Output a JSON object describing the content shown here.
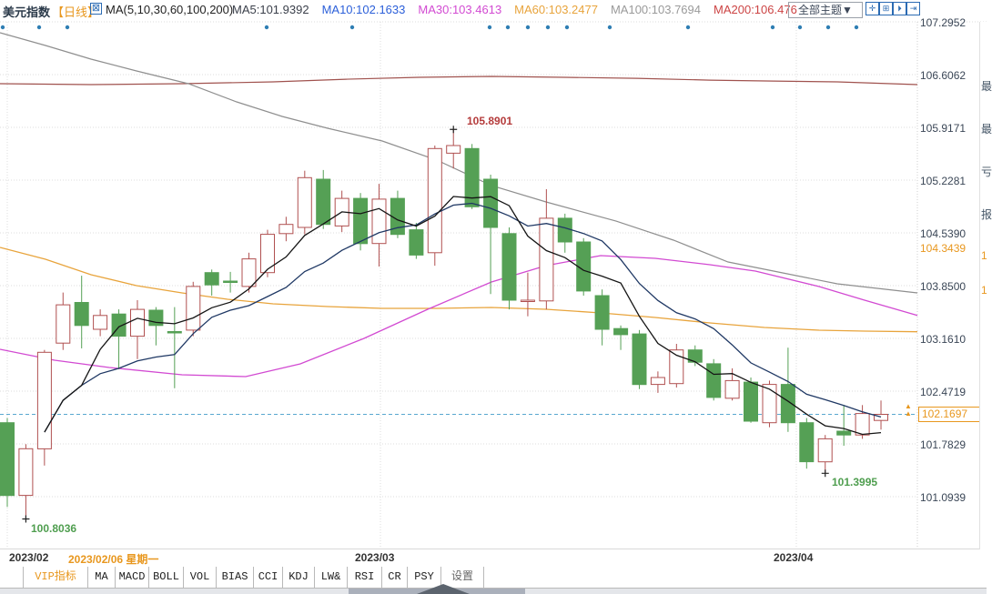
{
  "header": {
    "symbol": "美元指数",
    "period_tag": "【日线】",
    "chart_icon_glyph": "⊠",
    "ma_group_label": "MA(5,10,30,60,100,200)",
    "ma_values": [
      {
        "label": "MA5:101.9392",
        "color": "#3a3f4a"
      },
      {
        "label": "MA10:102.1633",
        "color": "#2b5fd9"
      },
      {
        "label": "MA30:103.4613",
        "color": "#d24ad2"
      },
      {
        "label": "MA60:103.2477",
        "color": "#e8a43c"
      },
      {
        "label": "MA100:103.7694",
        "color": "#9a9a9a"
      },
      {
        "label": "MA200:106.476",
        "color": "#cc4444"
      }
    ],
    "theme_dropdown": "全部主题▼",
    "toolbar_icons": [
      {
        "name": "move-crosshair-icon",
        "glyph": "✛"
      },
      {
        "name": "axis-scale-icon",
        "glyph": "⊞"
      },
      {
        "name": "play-forward-icon",
        "glyph": "⏵"
      },
      {
        "name": "exit-right-icon",
        "glyph": "⇥"
      }
    ]
  },
  "chart_data": {
    "type": "candlestick",
    "title": "美元指数 日线",
    "y_ticks": [
      "107.2952",
      "106.6062",
      "105.9171",
      "105.2281",
      "104.5390",
      "103.8500",
      "103.1610",
      "102.4719",
      "101.7829",
      "101.0939"
    ],
    "ylim": [
      100.4,
      107.3
    ],
    "grid": true,
    "x_axis_months": [
      {
        "label": "2023/02",
        "x": 8,
        "label_x": 10
      },
      {
        "label": "2023/03",
        "x": 418,
        "label_x": 390
      },
      {
        "label": "2023/04",
        "x": 875,
        "label_x": 850
      }
    ],
    "crosshair_date": "2023/02/06 星期一",
    "ohlc": [
      [
        102.06,
        102.12,
        100.96,
        101.11
      ],
      [
        101.11,
        101.78,
        100.8036,
        101.72
      ],
      [
        101.72,
        103.01,
        101.5,
        102.98
      ],
      [
        103.1,
        103.76,
        103.01,
        103.6
      ],
      [
        103.63,
        103.98,
        103.03,
        103.33
      ],
      [
        103.28,
        103.54,
        103.19,
        103.46
      ],
      [
        103.48,
        103.54,
        102.76,
        103.19
      ],
      [
        103.19,
        103.66,
        102.89,
        103.54
      ],
      [
        103.53,
        103.57,
        103.07,
        103.33
      ],
      [
        103.25,
        103.57,
        102.51,
        103.24
      ],
      [
        103.27,
        103.9,
        103.19,
        103.84
      ],
      [
        104.02,
        104.06,
        103.72,
        103.86
      ],
      [
        103.91,
        104.03,
        103.76,
        103.9
      ],
      [
        103.84,
        104.28,
        103.76,
        104.2
      ],
      [
        104.02,
        104.58,
        103.96,
        104.52
      ],
      [
        104.53,
        104.75,
        104.43,
        104.65
      ],
      [
        104.61,
        105.35,
        104.52,
        105.26
      ],
      [
        105.24,
        105.36,
        104.59,
        104.65
      ],
      [
        104.63,
        105.09,
        104.55,
        104.99
      ],
      [
        104.99,
        105.06,
        104.31,
        104.4
      ],
      [
        104.4,
        105.18,
        104.1,
        104.98
      ],
      [
        104.99,
        105.09,
        104.47,
        104.52
      ],
      [
        104.58,
        104.67,
        104.2,
        104.25
      ],
      [
        104.28,
        105.68,
        104.11,
        105.64
      ],
      [
        105.58,
        105.8901,
        105.38,
        105.68
      ],
      [
        105.64,
        105.7,
        104.85,
        104.88
      ],
      [
        105.24,
        105.3,
        103.74,
        104.61
      ],
      [
        104.53,
        104.61,
        103.54,
        103.66
      ],
      [
        103.66,
        104.02,
        103.45,
        103.66
      ],
      [
        103.65,
        105.11,
        103.54,
        104.73
      ],
      [
        104.73,
        104.79,
        104.28,
        104.42
      ],
      [
        104.42,
        104.47,
        103.72,
        103.78
      ],
      [
        103.72,
        103.8,
        103.07,
        103.28
      ],
      [
        103.29,
        103.33,
        103.01,
        103.21
      ],
      [
        103.22,
        103.27,
        102.5,
        102.56
      ],
      [
        102.56,
        102.73,
        102.45,
        102.65
      ],
      [
        102.57,
        103.09,
        102.52,
        103.01
      ],
      [
        103.01,
        103.07,
        102.8,
        102.85
      ],
      [
        102.83,
        102.89,
        102.35,
        102.39
      ],
      [
        102.38,
        102.77,
        102.35,
        102.61
      ],
      [
        102.59,
        102.65,
        102.06,
        102.08
      ],
      [
        102.06,
        102.61,
        102.0,
        102.56
      ],
      [
        102.56,
        103.04,
        101.94,
        102.06
      ],
      [
        102.06,
        102.12,
        101.46,
        101.55
      ],
      [
        101.55,
        101.9,
        101.3995,
        101.85
      ],
      [
        101.95,
        102.29,
        101.76,
        101.9
      ],
      [
        101.9,
        102.29,
        101.85,
        102.18
      ],
      [
        102.09,
        102.35,
        101.97,
        102.1697
      ]
    ],
    "ma_lines": {
      "ma30": [
        [
          0,
          103.019
        ],
        [
          60,
          102.876
        ],
        [
          120,
          102.781
        ],
        [
          200,
          102.686
        ],
        [
          270,
          102.662
        ],
        [
          330,
          102.828
        ],
        [
          400,
          103.161
        ],
        [
          470,
          103.541
        ],
        [
          540,
          103.898
        ],
        [
          600,
          104.111
        ],
        [
          660,
          104.242
        ],
        [
          720,
          104.206
        ],
        [
          780,
          104.123
        ],
        [
          830,
          104.04
        ],
        [
          900,
          103.838
        ],
        [
          950,
          103.66
        ],
        [
          1008,
          103.461
        ]
      ],
      "ma60": [
        [
          0,
          104.349
        ],
        [
          50,
          104.195
        ],
        [
          100,
          103.993
        ],
        [
          150,
          103.85
        ],
        [
          200,
          103.755
        ],
        [
          250,
          103.672
        ],
        [
          300,
          103.613
        ],
        [
          360,
          103.577
        ],
        [
          420,
          103.553
        ],
        [
          480,
          103.553
        ],
        [
          540,
          103.565
        ],
        [
          600,
          103.541
        ],
        [
          660,
          103.494
        ],
        [
          720,
          103.434
        ],
        [
          780,
          103.363
        ],
        [
          840,
          103.304
        ],
        [
          900,
          103.268
        ],
        [
          950,
          103.256
        ],
        [
          1008,
          103.248
        ]
      ],
      "ma100": [
        [
          0,
          107.153
        ],
        [
          50,
          106.986
        ],
        [
          100,
          106.808
        ],
        [
          150,
          106.654
        ],
        [
          207,
          106.487
        ],
        [
          260,
          106.25
        ],
        [
          310,
          106.06
        ],
        [
          360,
          105.905
        ],
        [
          420,
          105.739
        ],
        [
          480,
          105.489
        ],
        [
          540,
          105.157
        ],
        [
          600,
          104.943
        ],
        [
          677,
          104.693
        ],
        [
          740,
          104.444
        ],
        [
          800,
          104.159
        ],
        [
          860,
          104.016
        ],
        [
          920,
          103.874
        ],
        [
          1008,
          103.755
        ]
      ],
      "ma200": [
        [
          0,
          106.487
        ],
        [
          100,
          106.475
        ],
        [
          200,
          106.487
        ],
        [
          300,
          106.511
        ],
        [
          380,
          106.546
        ],
        [
          460,
          106.57
        ],
        [
          540,
          106.582
        ],
        [
          620,
          106.57
        ],
        [
          700,
          106.558
        ],
        [
          780,
          106.534
        ],
        [
          850,
          106.522
        ],
        [
          920,
          106.511
        ],
        [
          1008,
          106.475
        ]
      ]
    },
    "colors": {
      "up": "#b05050",
      "down": "#55a055",
      "ma5": "#151515",
      "ma10": "#1f3864",
      "ma30": "#d24ad2",
      "ma60": "#e8a43c",
      "ma100": "#8f8f8f",
      "ma200": "#a0524e",
      "grid": "#dcdcdc",
      "last_price_line": "#58a8cf",
      "event_dot": "#2e7eb3"
    },
    "event_dots_x": [
      3,
      43,
      74,
      293,
      387,
      538,
      558,
      580,
      602,
      623,
      670,
      756,
      849,
      879,
      910,
      941
    ],
    "annotations": {
      "high": {
        "text": "105.8901",
        "price": 105.8901,
        "candle_index": 24
      },
      "low_left": {
        "text": "100.8036",
        "price": 100.8036,
        "candle_index": 1
      },
      "low_right": {
        "text": "101.3995",
        "price": 101.3995,
        "candle_index": 44
      },
      "level_marker": {
        "text": "104.3439",
        "price": 104.3439
      },
      "last_price": {
        "text": "102.1697",
        "price": 102.1697
      }
    }
  },
  "xaxis": {
    "crosshair_date": "2023/02/06 星期一"
  },
  "tabs": [
    {
      "label": "",
      "width": 25,
      "color": "#222222",
      "name": "tab-lead"
    },
    {
      "label": "VIP指标",
      "width": 70,
      "color": "#e8971e",
      "name": "tab-vip-indicators"
    },
    {
      "label": "MA",
      "width": 29,
      "color": "#222222",
      "name": "tab-ma"
    },
    {
      "label": "MACD",
      "width": 36,
      "color": "#222222",
      "name": "tab-macd"
    },
    {
      "label": "BOLL",
      "width": 37,
      "color": "#222222",
      "name": "tab-boll"
    },
    {
      "label": "VOL",
      "width": 35,
      "color": "#222222",
      "name": "tab-vol"
    },
    {
      "label": "BIAS",
      "width": 40,
      "color": "#222222",
      "name": "tab-bias"
    },
    {
      "label": "CCI",
      "width": 31,
      "color": "#222222",
      "name": "tab-cci"
    },
    {
      "label": "KDJ",
      "width": 34,
      "color": "#222222",
      "name": "tab-kdj"
    },
    {
      "label": "LW&",
      "width": 35,
      "color": "#222222",
      "name": "tab-lw"
    },
    {
      "label": "RSI",
      "width": 37,
      "color": "#222222",
      "name": "tab-rsi"
    },
    {
      "label": "CR",
      "width": 27,
      "color": "#222222",
      "name": "tab-cr"
    },
    {
      "label": "PSY",
      "width": 36,
      "color": "#222222",
      "name": "tab-psy"
    },
    {
      "label": "设置",
      "width": 46,
      "color": "#666666",
      "name": "tab-settings"
    }
  ],
  "right_strip": {
    "chars": [
      {
        "ch": "最",
        "y": 86,
        "color": "#445566"
      },
      {
        "ch": "最",
        "y": 133,
        "color": "#445566"
      },
      {
        "ch": "亏",
        "y": 180,
        "color": "#445566"
      },
      {
        "ch": "报",
        "y": 227,
        "color": "#445566"
      },
      {
        "ch": "1",
        "y": 274,
        "color": "#e8971e"
      },
      {
        "ch": "1",
        "y": 312,
        "color": "#e8971e"
      }
    ]
  }
}
